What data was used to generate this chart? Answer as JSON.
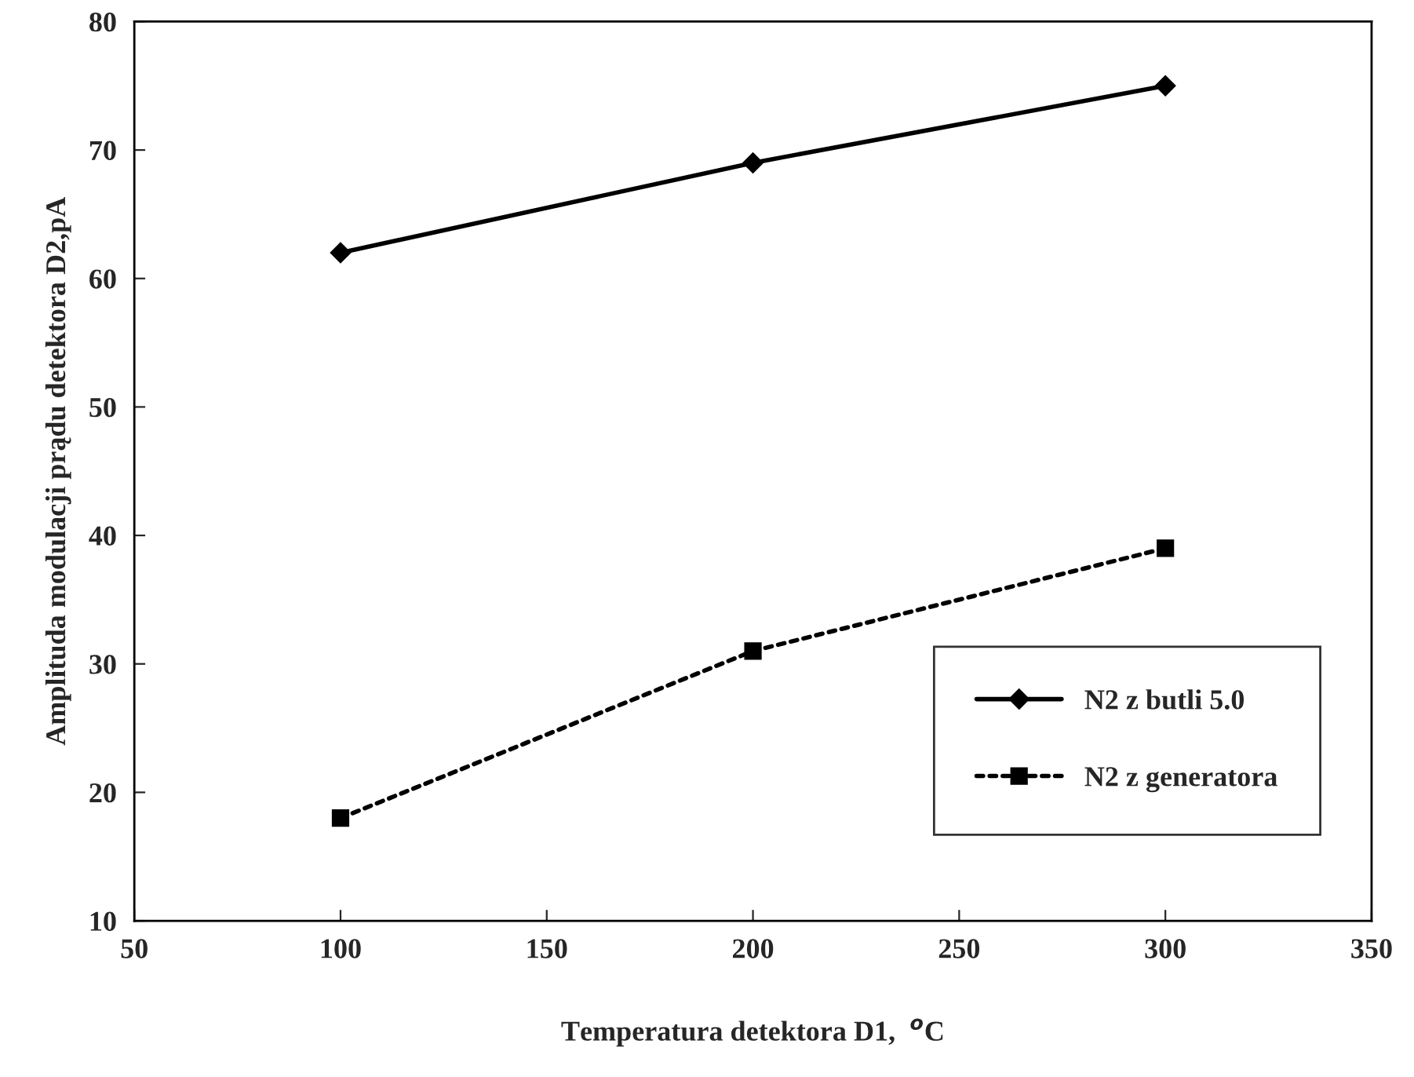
{
  "chart_data": {
    "type": "line",
    "xlabel": "Temperatura detektora D1,  $^{o}$C",
    "ylabel": "Amplituda modulacji prądu detektora D2,pA",
    "x": [
      100,
      200,
      300
    ],
    "series": [
      {
        "name": "N2 z butli 5.0",
        "color": "#000000",
        "values": [
          62,
          69,
          75
        ],
        "marker": "diamond",
        "line_style": "solid"
      },
      {
        "name": "N2 z generatora",
        "color": "#000000",
        "values": [
          18,
          31,
          39
        ],
        "marker": "square",
        "line_style": "dotted"
      }
    ],
    "xlim": [
      50,
      350
    ],
    "xticks": [
      50,
      100,
      150,
      200,
      250,
      300,
      350
    ],
    "ylim": [
      10,
      80
    ],
    "yticks": [
      10,
      20,
      30,
      40,
      50,
      60,
      70,
      80
    ],
    "grid": false,
    "legend": "bottom right"
  }
}
